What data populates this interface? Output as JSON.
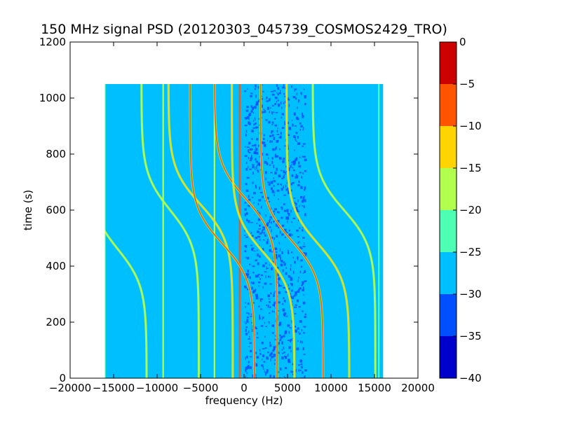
{
  "chart_data": {
    "type": "heatmap",
    "title": "150 MHz signal PSD (20120303_045739_COSMOS2429_TRO)",
    "xlabel": "frequency (Hz)",
    "ylabel": "time (s)",
    "xlim": [
      -20000,
      20000
    ],
    "ylim": [
      0,
      1200
    ],
    "xticks": [
      -20000,
      -15000,
      -10000,
      -5000,
      0,
      5000,
      10000,
      15000,
      20000
    ],
    "xtick_labels": [
      "−20000",
      "−15000",
      "−10000",
      "−5000",
      "0",
      "5000",
      "10000",
      "15000",
      "20000"
    ],
    "yticks": [
      0,
      200,
      400,
      600,
      800,
      1000,
      1200
    ],
    "ytick_labels": [
      "0",
      "200",
      "400",
      "600",
      "800",
      "1000",
      "1200"
    ],
    "data_extent": {
      "x": [
        -16000,
        16000
      ],
      "y": [
        0,
        1050
      ]
    },
    "background_level": -28,
    "grid": false,
    "colorbar": {
      "colormap": "jet",
      "range": [
        -40,
        0
      ],
      "levels": [
        -40,
        -35,
        -30,
        -25,
        -20,
        -15,
        -10,
        -5,
        0
      ],
      "tick_labels": [
        "−40",
        "−35",
        "−30",
        "−25",
        "−20",
        "−15",
        "−10",
        "−5",
        "0"
      ],
      "colors": [
        "#0000cd",
        "#0050ff",
        "#00bfff",
        "#4dffb2",
        "#b2ff4d",
        "#ffd400",
        "#ff5500",
        "#cd0000"
      ]
    },
    "vertical_lines": [
      {
        "freq": -16000,
        "level": -22
      },
      {
        "freq": -9300,
        "level": -18
      },
      {
        "freq": -3400,
        "level": -16
      },
      {
        "freq": -500,
        "level": -8
      },
      {
        "freq": 15500,
        "level": -22
      }
    ],
    "doppler_tracks": [
      {
        "center": -14500,
        "half_width": 3300,
        "t0": 460,
        "level": -20
      },
      {
        "center": -8500,
        "half_width": 3300,
        "t0": 600,
        "level": -20
      },
      {
        "center": -5000,
        "half_width": 3700,
        "t0": 620,
        "level": -12
      },
      {
        "center": -2500,
        "half_width": 3700,
        "t0": 480,
        "level": -6
      },
      {
        "center": 200,
        "half_width": 3600,
        "t0": 640,
        "level": -8
      },
      {
        "center": 2200,
        "half_width": 3600,
        "t0": 450,
        "level": -12
      },
      {
        "center": 5500,
        "half_width": 3600,
        "t0": 490,
        "level": -6
      },
      {
        "center": 8500,
        "half_width": 3600,
        "t0": 480,
        "level": -12
      },
      {
        "center": 11500,
        "half_width": 3600,
        "t0": 600,
        "level": -20
      }
    ],
    "noise_band": {
      "freq": [
        0,
        7000
      ],
      "level": -33
    }
  }
}
